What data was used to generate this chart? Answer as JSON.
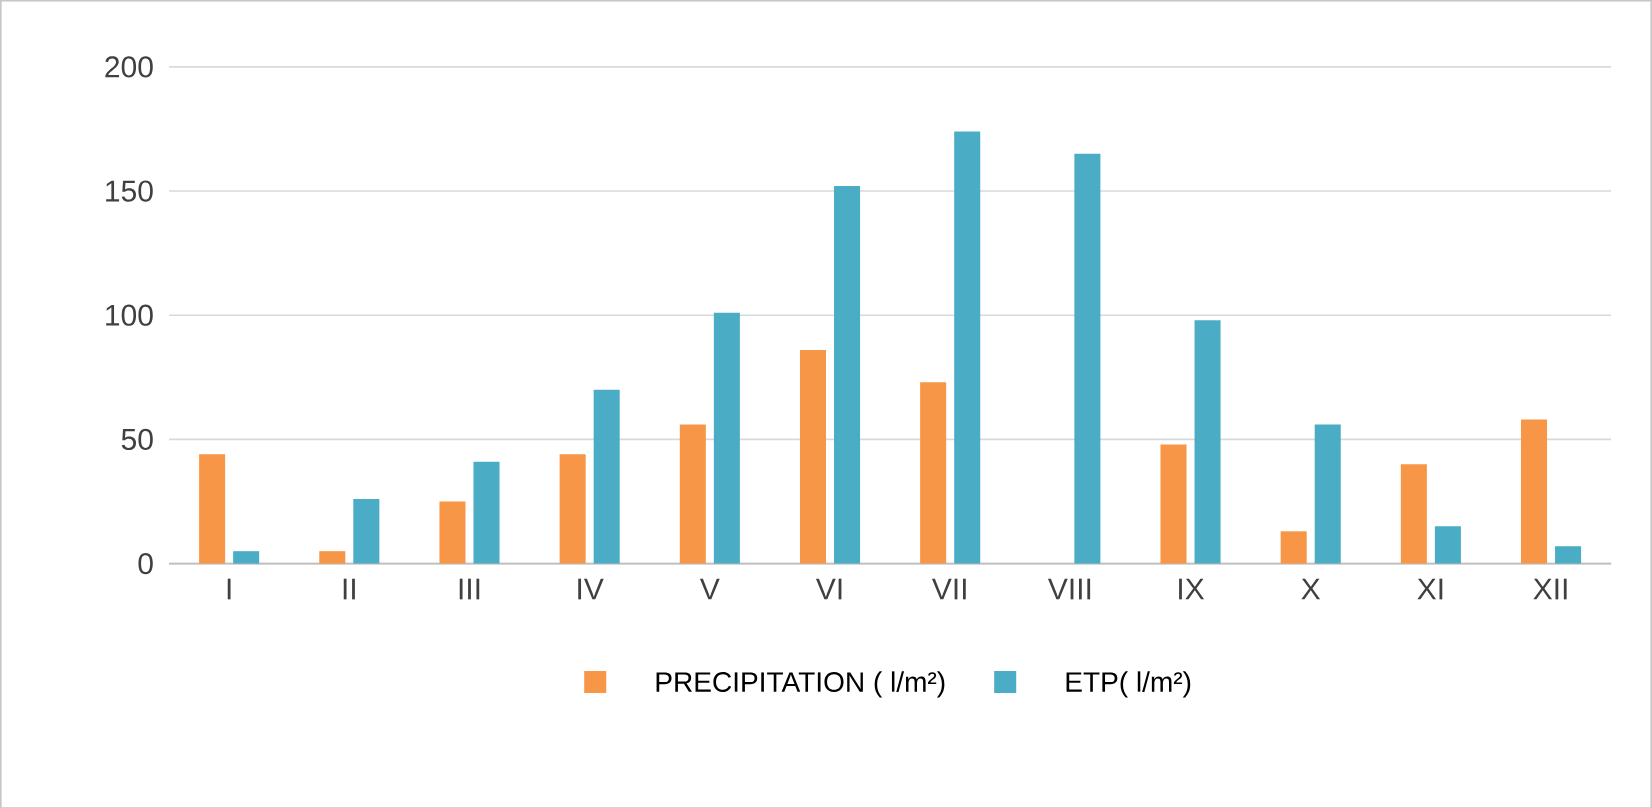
{
  "chart_data": {
    "type": "bar",
    "categories": [
      "I",
      "II",
      "III",
      "IV",
      "V",
      "VI",
      "VII",
      "VIII",
      "IX",
      "X",
      "XI",
      "XII"
    ],
    "series": [
      {
        "name": "PRECIPITATION ( l/m²)",
        "color": "#f79646",
        "values": [
          44,
          5,
          25,
          44,
          56,
          86,
          73,
          null,
          48,
          13,
          40,
          58
        ]
      },
      {
        "name": "ETP( l/m²)",
        "color": "#4bacc6",
        "values": [
          5,
          26,
          41,
          70,
          101,
          152,
          174,
          165,
          98,
          56,
          15,
          7
        ]
      }
    ],
    "ylim": [
      0,
      200
    ],
    "yticks": [
      0,
      50,
      100,
      150,
      200
    ],
    "grid": "y",
    "legend": "bottom"
  }
}
